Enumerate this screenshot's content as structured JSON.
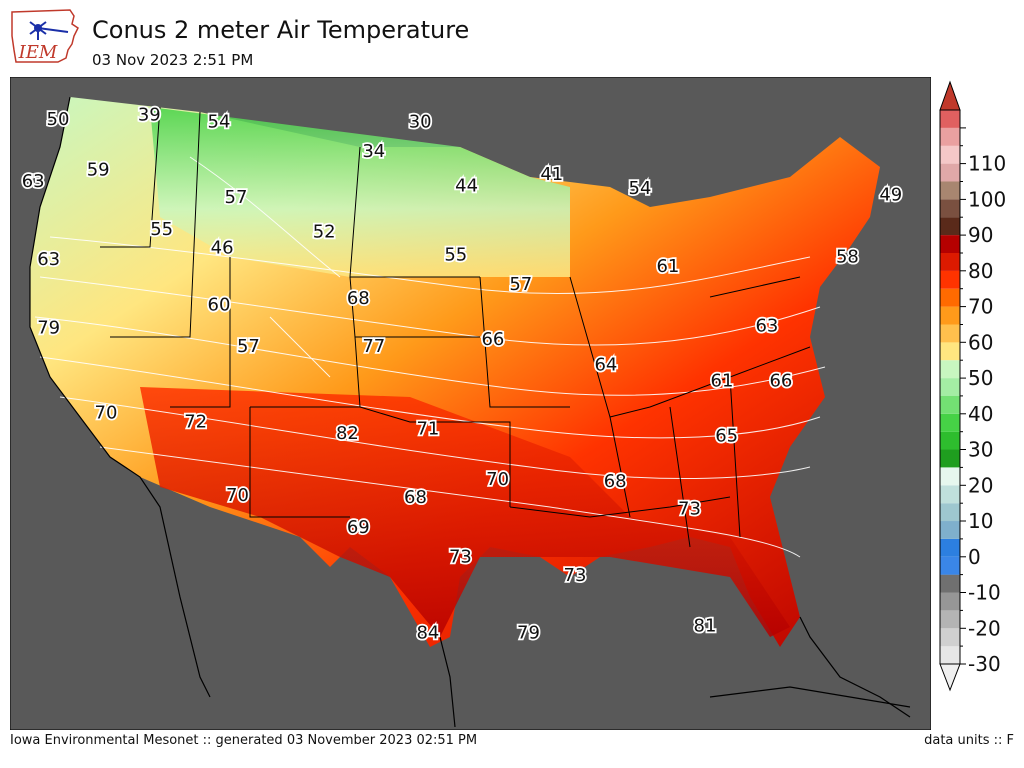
{
  "header": {
    "title": "Conus 2 meter Air Temperature",
    "subtitle": "03 Nov 2023 2:51 PM",
    "logo_text": "IEM"
  },
  "footer": {
    "left": "Iowa Environmental Mesonet :: generated 03 November 2023 02:51 PM",
    "right": "data units :: F"
  },
  "colors": {
    "background": "#595959",
    "border": "#000000",
    "contour": "#ffffff"
  },
  "legend": {
    "labels": [
      "110",
      "100",
      "90",
      "80",
      "70",
      "60",
      "50",
      "40",
      "30",
      "20",
      "10",
      "0",
      "-10",
      "-20",
      "-30"
    ],
    "bands": [
      {
        "min": -30,
        "max": -25,
        "color": "#e6e6e6"
      },
      {
        "min": -25,
        "max": -20,
        "color": "#d0d0d0"
      },
      {
        "min": -20,
        "max": -15,
        "color": "#b4b4b4"
      },
      {
        "min": -15,
        "max": -10,
        "color": "#969696"
      },
      {
        "min": -10,
        "max": -5,
        "color": "#707070"
      },
      {
        "min": -5,
        "max": 0,
        "color": "#3a86e8"
      },
      {
        "min": 0,
        "max": 5,
        "color": "#2c7fe0"
      },
      {
        "min": 5,
        "max": 10,
        "color": "#7fb0cc"
      },
      {
        "min": 10,
        "max": 15,
        "color": "#9ec7cf"
      },
      {
        "min": 15,
        "max": 20,
        "color": "#c0e0dc"
      },
      {
        "min": 20,
        "max": 25,
        "color": "#e6f7ee"
      },
      {
        "min": 25,
        "max": 30,
        "color": "#1f9e1f"
      },
      {
        "min": 30,
        "max": 35,
        "color": "#2ebd2e"
      },
      {
        "min": 35,
        "max": 40,
        "color": "#46d246"
      },
      {
        "min": 40,
        "max": 45,
        "color": "#73e073"
      },
      {
        "min": 45,
        "max": 50,
        "color": "#a4eda4"
      },
      {
        "min": 50,
        "max": 55,
        "color": "#c8f7c0"
      },
      {
        "min": 55,
        "max": 60,
        "color": "#ffe680"
      },
      {
        "min": 60,
        "max": 65,
        "color": "#ffc04d"
      },
      {
        "min": 65,
        "max": 70,
        "color": "#ff9a1a"
      },
      {
        "min": 70,
        "max": 75,
        "color": "#ff6a00"
      },
      {
        "min": 75,
        "max": 80,
        "color": "#ff3300"
      },
      {
        "min": 80,
        "max": 85,
        "color": "#dd1a00"
      },
      {
        "min": 85,
        "max": 90,
        "color": "#b50000"
      },
      {
        "min": 90,
        "max": 95,
        "color": "#5a2a1a"
      },
      {
        "min": 95,
        "max": 100,
        "color": "#7a5040"
      },
      {
        "min": 100,
        "max": 105,
        "color": "#a88670"
      },
      {
        "min": 105,
        "max": 110,
        "color": "#e0a8a8"
      },
      {
        "min": 110,
        "max": 115,
        "color": "#f5c8c8"
      },
      {
        "min": 115,
        "max": 120,
        "color": "#eaa0a0"
      },
      {
        "min": 120,
        "max": 125,
        "color": "#e06060"
      }
    ]
  },
  "stations": [
    {
      "value": "50",
      "lat": 48.4,
      "lon": -122.4
    },
    {
      "value": "39",
      "lat": 48.6,
      "lon": -116.5
    },
    {
      "value": "54",
      "lat": 48.3,
      "lon": -112.0
    },
    {
      "value": "30",
      "lat": 48.3,
      "lon": -99.0
    },
    {
      "value": "63",
      "lat": 45.7,
      "lon": -124.0
    },
    {
      "value": "59",
      "lat": 46.2,
      "lon": -119.8
    },
    {
      "value": "34",
      "lat": 47.0,
      "lon": -102.0
    },
    {
      "value": "57",
      "lat": 45.0,
      "lon": -110.9
    },
    {
      "value": "44",
      "lat": 45.5,
      "lon": -96.0
    },
    {
      "value": "41",
      "lat": 46.0,
      "lon": -90.5
    },
    {
      "value": "54",
      "lat": 45.4,
      "lon": -84.8
    },
    {
      "value": "49",
      "lat": 45.1,
      "lon": -68.6
    },
    {
      "value": "55",
      "lat": 43.6,
      "lon": -115.7
    },
    {
      "value": "46",
      "lat": 42.8,
      "lon": -111.8
    },
    {
      "value": "52",
      "lat": 43.5,
      "lon": -105.2
    },
    {
      "value": "63",
      "lat": 42.3,
      "lon": -123.0
    },
    {
      "value": "55",
      "lat": 42.5,
      "lon": -96.7
    },
    {
      "value": "58",
      "lat": 42.4,
      "lon": -71.4
    },
    {
      "value": "61",
      "lat": 42.0,
      "lon": -83.0
    },
    {
      "value": "57",
      "lat": 41.2,
      "lon": -92.5
    },
    {
      "value": "68",
      "lat": 40.6,
      "lon": -103.0
    },
    {
      "value": "60",
      "lat": 40.3,
      "lon": -112.0
    },
    {
      "value": "79",
      "lat": 39.3,
      "lon": -123.0
    },
    {
      "value": "63",
      "lat": 39.4,
      "lon": -76.6
    },
    {
      "value": "66",
      "lat": 38.8,
      "lon": -94.3
    },
    {
      "value": "57",
      "lat": 38.5,
      "lon": -110.1
    },
    {
      "value": "77",
      "lat": 38.5,
      "lon": -102.0
    },
    {
      "value": "64",
      "lat": 37.7,
      "lon": -87.0
    },
    {
      "value": "61",
      "lat": 37.0,
      "lon": -79.5
    },
    {
      "value": "66",
      "lat": 37.0,
      "lon": -75.7
    },
    {
      "value": "70",
      "lat": 35.6,
      "lon": -119.3
    },
    {
      "value": "72",
      "lat": 35.2,
      "lon": -113.5
    },
    {
      "value": "82",
      "lat": 34.7,
      "lon": -103.7
    },
    {
      "value": "71",
      "lat": 34.9,
      "lon": -98.5
    },
    {
      "value": "65",
      "lat": 34.6,
      "lon": -79.2
    },
    {
      "value": "70",
      "lat": 32.7,
      "lon": -94.0
    },
    {
      "value": "68",
      "lat": 32.6,
      "lon": -86.4
    },
    {
      "value": "70",
      "lat": 32.0,
      "lon": -110.8
    },
    {
      "value": "68",
      "lat": 31.9,
      "lon": -99.3
    },
    {
      "value": "73",
      "lat": 31.4,
      "lon": -81.6
    },
    {
      "value": "69",
      "lat": 30.6,
      "lon": -103.0
    },
    {
      "value": "73",
      "lat": 29.3,
      "lon": -96.4
    },
    {
      "value": "73",
      "lat": 28.5,
      "lon": -89.0
    },
    {
      "value": "81",
      "lat": 26.3,
      "lon": -80.6
    },
    {
      "value": "84",
      "lat": 26.0,
      "lon": -98.5
    },
    {
      "value": "79",
      "lat": 26.0,
      "lon": -92.0
    }
  ]
}
